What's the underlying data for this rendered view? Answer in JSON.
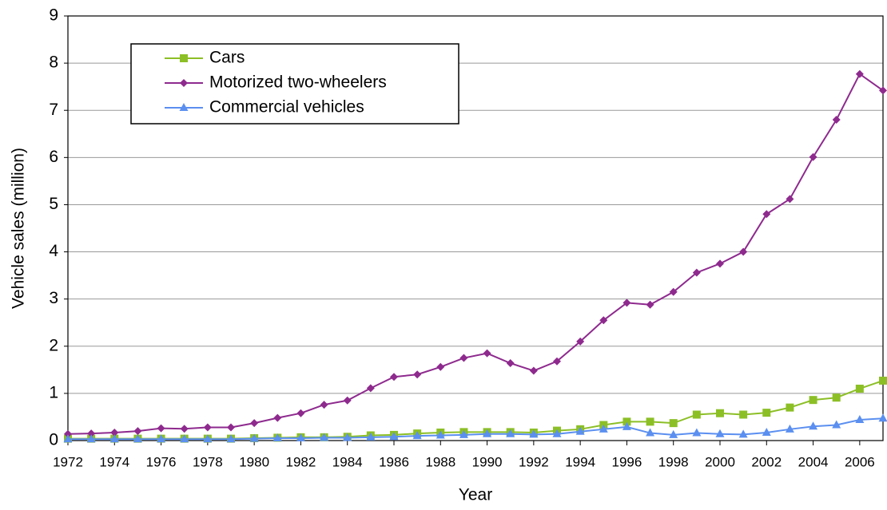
{
  "chart_data": {
    "type": "line",
    "x_label": "Year",
    "y_label": "Vehicle sales (million)",
    "x": [
      1972,
      1973,
      1974,
      1975,
      1976,
      1977,
      1978,
      1979,
      1980,
      1981,
      1982,
      1983,
      1984,
      1985,
      1986,
      1987,
      1988,
      1989,
      1990,
      1991,
      1992,
      1993,
      1994,
      1995,
      1996,
      1997,
      1998,
      1999,
      2000,
      2001,
      2002,
      2003,
      2004,
      2005,
      2006,
      2007
    ],
    "series": [
      {
        "name": "Cars",
        "color": "#8cbf26",
        "marker": "square",
        "values": [
          0.04,
          0.04,
          0.04,
          0.04,
          0.04,
          0.04,
          0.04,
          0.04,
          0.05,
          0.06,
          0.07,
          0.07,
          0.08,
          0.11,
          0.12,
          0.15,
          0.17,
          0.18,
          0.18,
          0.18,
          0.17,
          0.21,
          0.24,
          0.33,
          0.4,
          0.4,
          0.37,
          0.55,
          0.58,
          0.55,
          0.59,
          0.7,
          0.86,
          0.91,
          1.1,
          1.27
        ]
      },
      {
        "name": "Motorized two-wheelers",
        "color": "#8e2a8e",
        "marker": "diamond",
        "values": [
          0.14,
          0.15,
          0.17,
          0.2,
          0.26,
          0.25,
          0.28,
          0.28,
          0.37,
          0.48,
          0.58,
          0.76,
          0.85,
          1.11,
          1.35,
          1.4,
          1.56,
          1.75,
          1.85,
          1.64,
          1.48,
          1.68,
          2.1,
          2.55,
          2.92,
          2.88,
          3.15,
          3.56,
          3.75,
          4.0,
          4.8,
          5.12,
          6.01,
          6.8,
          7.77,
          7.42
        ]
      },
      {
        "name": "Commercial vehicles",
        "color": "#5b8ff0",
        "marker": "triangle",
        "values": [
          0.03,
          0.03,
          0.03,
          0.03,
          0.03,
          0.03,
          0.03,
          0.03,
          0.04,
          0.05,
          0.05,
          0.06,
          0.06,
          0.07,
          0.08,
          0.1,
          0.11,
          0.12,
          0.14,
          0.14,
          0.13,
          0.14,
          0.19,
          0.24,
          0.29,
          0.16,
          0.12,
          0.16,
          0.14,
          0.13,
          0.17,
          0.24,
          0.3,
          0.33,
          0.44,
          0.47
        ]
      }
    ],
    "xlim": [
      1972,
      2007
    ],
    "xticks": [
      1972,
      1974,
      1976,
      1978,
      1980,
      1982,
      1984,
      1986,
      1988,
      1990,
      1992,
      1994,
      1996,
      1998,
      2000,
      2002,
      2004,
      2006
    ],
    "ylim": [
      0,
      9
    ],
    "yticks": [
      0,
      1,
      2,
      3,
      4,
      5,
      6,
      7,
      8,
      9
    ],
    "grid": true,
    "legend": "top-left"
  }
}
